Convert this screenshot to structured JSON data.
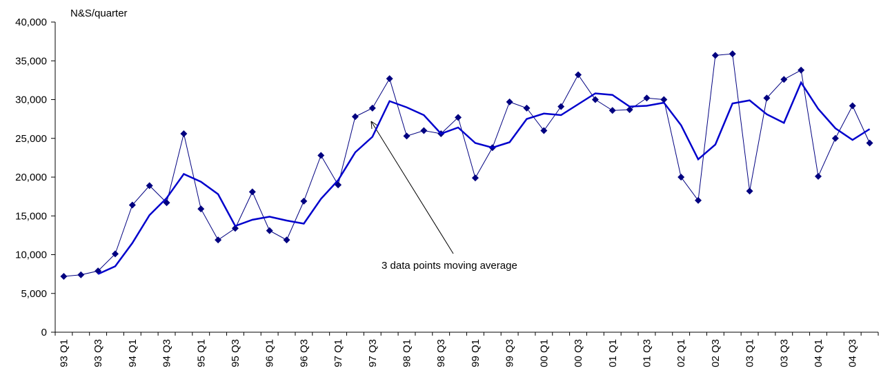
{
  "chart_data": {
    "type": "line",
    "y_label": "N&S/quarter",
    "annotation": "3 data points moving average",
    "categories": [
      "93 Q1",
      null,
      "93 Q3",
      null,
      "94 Q1",
      null,
      "94 Q3",
      null,
      "95 Q1",
      null,
      "95 Q3",
      null,
      "96 Q1",
      null,
      "96 Q3",
      null,
      "97 Q1",
      null,
      "97 Q3",
      null,
      "98 Q1",
      null,
      "98 Q3",
      null,
      "99 Q1",
      null,
      "99 Q3",
      null,
      "00 Q1",
      null,
      "00 Q3",
      null,
      "01 Q1",
      null,
      "01 Q3",
      null,
      "02 Q1",
      null,
      "02 Q3",
      null,
      "03 Q1",
      null,
      "03 Q3",
      null,
      "04 Q1",
      null,
      "04 Q3",
      null
    ],
    "series": [
      {
        "color": "#000080",
        "marker": "diamond",
        "values": [
          7200,
          7400,
          7900,
          10100,
          16400,
          18900,
          16700,
          25600,
          15900,
          11900,
          13400,
          18100,
          13100,
          11900,
          16900,
          22800,
          19000,
          27800,
          28900,
          32700,
          25300,
          26000,
          25600,
          27700,
          19900,
          23800,
          29700,
          28900,
          26000,
          29100,
          33200,
          30000,
          28600,
          28700,
          30200,
          30000,
          20000,
          17000,
          35700,
          35900,
          18200,
          30200,
          32600,
          33800,
          20100,
          25000,
          29200,
          24400
        ]
      },
      {
        "color": "#0000cc",
        "values": [
          null,
          null,
          7500,
          8500,
          11500,
          15100,
          17300,
          20400,
          19400,
          17800,
          13700,
          14500,
          14900,
          14400,
          14000,
          17200,
          19600,
          23200,
          25200,
          29800,
          29000,
          28000,
          25600,
          26400,
          24400,
          23800,
          24500,
          27500,
          28200,
          28000,
          29400,
          30800,
          30600,
          29100,
          29200,
          29600,
          26700,
          22300,
          24200,
          29500,
          29900,
          28100,
          27000,
          32200,
          28800,
          26300,
          24800,
          26200
        ]
      }
    ],
    "ylim": [
      0,
      40000
    ],
    "yticks": [
      0,
      {
        "value": 5000,
        "label": "5,000"
      },
      {
        "value": 10000,
        "label": "10,000"
      },
      {
        "value": 15000,
        "label": "15,000"
      },
      {
        "value": 20000,
        "label": "20,000"
      },
      {
        "value": 25000,
        "label": "25,000"
      },
      {
        "value": 30000,
        "label": "30,000"
      },
      {
        "value": 35000,
        "label": "35,000"
      },
      {
        "value": 40000,
        "label": "40,000"
      }
    ],
    "grid": false
  }
}
